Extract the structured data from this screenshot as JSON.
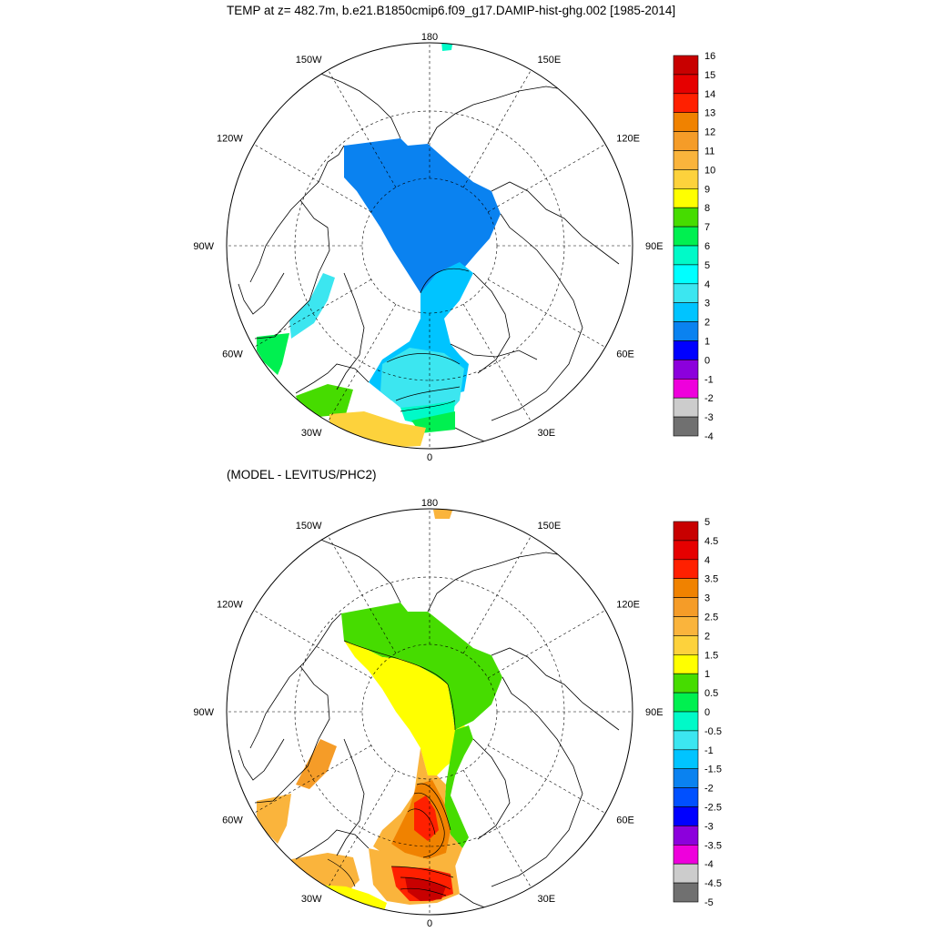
{
  "top_panel": {
    "title": "TEMP at z= 482.7m, b.e21.B1850cmip6.f09_g17.DAMIP-hist-ghg.002 [1985-2014]",
    "lon_labels": [
      "180",
      "150E",
      "120E",
      "90E",
      "60E",
      "30E",
      "0",
      "30W",
      "60W",
      "90W",
      "120W",
      "150W"
    ],
    "colorbar": {
      "labels": [
        "16",
        "15",
        "14",
        "13",
        "12",
        "11",
        "10",
        "9",
        "8",
        "7",
        "6",
        "5",
        "4",
        "3",
        "2",
        "1",
        "0",
        "-1",
        "-2",
        "-3",
        "-4"
      ],
      "colors": [
        "#c80000",
        "#e60000",
        "#ff2000",
        "#f08200",
        "#f59c28",
        "#fab43c",
        "#fdd23c",
        "#ffff00",
        "#46dc00",
        "#00f050",
        "#00fac8",
        "#00ffff",
        "#3ce6f0",
        "#00c4ff",
        "#0a82f0",
        "#0000ff",
        "#8c00dc",
        "#ee00dc",
        "#cccccc",
        "#707070"
      ]
    }
  },
  "bottom_panel": {
    "title": "(MODEL - LEVITUS/PHC2)",
    "lon_labels": [
      "180",
      "150E",
      "120E",
      "90E",
      "60E",
      "30E",
      "0",
      "30W",
      "60W",
      "90W",
      "120W",
      "150W"
    ],
    "colorbar": {
      "labels": [
        "5",
        "4.5",
        "4",
        "3.5",
        "3",
        "2.5",
        "2",
        "1.5",
        "1",
        "0.5",
        "0",
        "-0.5",
        "-1",
        "-1.5",
        "-2",
        "-2.5",
        "-3",
        "-3.5",
        "-4",
        "-4.5",
        "-5"
      ],
      "colors": [
        "#c80000",
        "#e60000",
        "#ff2000",
        "#f08200",
        "#f59c28",
        "#fab43c",
        "#fdd23c",
        "#ffff00",
        "#46dc00",
        "#00f050",
        "#00fac8",
        "#3ce6f0",
        "#00c4ff",
        "#0a82f0",
        "#0050ff",
        "#0000ff",
        "#8c00dc",
        "#ee00dc",
        "#cccccc",
        "#707070"
      ]
    }
  }
}
